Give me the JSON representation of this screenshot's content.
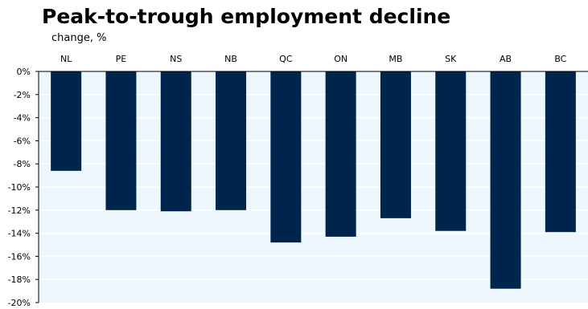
{
  "chart_data": {
    "type": "bar",
    "title": "Peak-to-trough employment decline",
    "subtitle": "change, %",
    "categories": [
      "NL",
      "PE",
      "NS",
      "NB",
      "QC",
      "ON",
      "MB",
      "SK",
      "AB",
      "BC"
    ],
    "values": [
      -8.6,
      -12.0,
      -12.1,
      -12.0,
      -14.8,
      -14.3,
      -12.7,
      -13.8,
      -18.8,
      -13.9
    ],
    "ylim": [
      -20,
      0
    ],
    "yticks": [
      0,
      -2,
      -4,
      -6,
      -8,
      -10,
      -12,
      -14,
      -16,
      -18,
      -20
    ],
    "ytick_labels": [
      "0%",
      "-2%",
      "-4%",
      "-6%",
      "-8%",
      "-10%",
      "-12%",
      "-14%",
      "-16%",
      "-18%",
      "-20%"
    ],
    "grid": true,
    "category_axis_position": "top",
    "colors": {
      "bar": "#00254d",
      "plot_background": "#eef6fd",
      "gridline": "#ffffff",
      "axis": "#000000"
    }
  }
}
